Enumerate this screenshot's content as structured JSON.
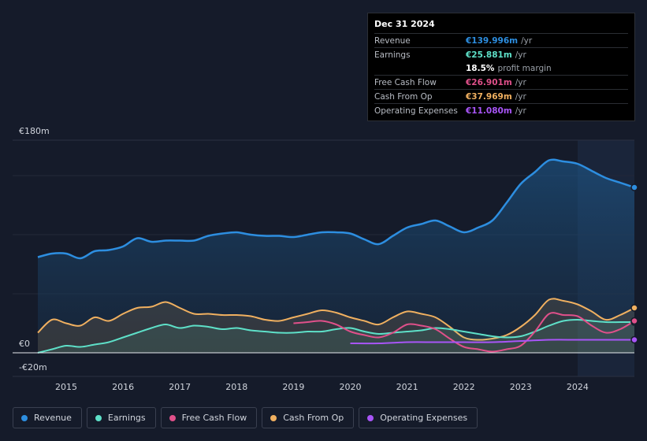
{
  "tooltip": {
    "date": "Dec 31 2024",
    "rows": [
      {
        "label": "Revenue",
        "value": "€139.996m",
        "unit": "/yr",
        "color": "#2d8ee0"
      },
      {
        "label": "Earnings",
        "value": "€25.881m",
        "unit": "/yr",
        "color": "#5ee0c8"
      },
      {
        "label": "",
        "value": "18.5%",
        "unit": "profit margin",
        "color": "#ffffff"
      },
      {
        "label": "Free Cash Flow",
        "value": "€26.901m",
        "unit": "/yr",
        "color": "#e0508a"
      },
      {
        "label": "Cash From Op",
        "value": "€37.969m",
        "unit": "/yr",
        "color": "#f0b060"
      },
      {
        "label": "Operating Expenses",
        "value": "€11.080m",
        "unit": "/yr",
        "color": "#a855f7"
      }
    ]
  },
  "legend": [
    {
      "label": "Revenue",
      "color": "#2d8ee0"
    },
    {
      "label": "Earnings",
      "color": "#5ee0c8"
    },
    {
      "label": "Free Cash Flow",
      "color": "#e0508a"
    },
    {
      "label": "Cash From Op",
      "color": "#f0b060"
    },
    {
      "label": "Operating Expenses",
      "color": "#a855f7"
    }
  ],
  "chart_data": {
    "type": "line",
    "title": "",
    "currency": "EUR",
    "unit": "€m",
    "ylim": [
      -20,
      180
    ],
    "y_tick_labels": [
      "€180m",
      "€0",
      "-€20m"
    ],
    "x_tick_labels": [
      "2015",
      "2016",
      "2017",
      "2018",
      "2019",
      "2020",
      "2021",
      "2022",
      "2023",
      "2024"
    ],
    "highlight_from": 2024.0,
    "series": [
      {
        "name": "Revenue",
        "color": "#2d8ee0",
        "fill": true,
        "x": [
          2014.5,
          2014.75,
          2015,
          2015.25,
          2015.5,
          2015.75,
          2016,
          2016.25,
          2016.5,
          2016.75,
          2017,
          2017.25,
          2017.5,
          2017.75,
          2018,
          2018.25,
          2018.5,
          2018.75,
          2019,
          2019.25,
          2019.5,
          2019.75,
          2020,
          2020.25,
          2020.5,
          2020.75,
          2021,
          2021.25,
          2021.5,
          2021.75,
          2022,
          2022.25,
          2022.5,
          2022.75,
          2023,
          2023.25,
          2023.5,
          2023.75,
          2024,
          2024.25,
          2024.5,
          2024.75,
          2025
        ],
        "y": [
          81,
          84,
          84,
          80,
          86,
          87,
          90,
          97,
          94,
          95,
          95,
          95,
          99,
          101,
          102,
          100,
          99,
          99,
          98,
          100,
          102,
          102,
          101,
          96,
          92,
          99,
          106,
          109,
          112,
          107,
          102,
          106,
          112,
          127,
          143,
          153,
          163,
          162,
          160,
          154,
          148,
          144,
          140
        ]
      },
      {
        "name": "Earnings",
        "color": "#5ee0c8",
        "fill": true,
        "x": [
          2014.5,
          2014.75,
          2015,
          2015.25,
          2015.5,
          2015.75,
          2016,
          2016.25,
          2016.5,
          2016.75,
          2017,
          2017.25,
          2017.5,
          2017.75,
          2018,
          2018.25,
          2018.5,
          2018.75,
          2019,
          2019.25,
          2019.5,
          2019.75,
          2020,
          2020.25,
          2020.5,
          2020.75,
          2021,
          2021.25,
          2021.5,
          2021.75,
          2022,
          2022.25,
          2022.5,
          2022.75,
          2023,
          2023.25,
          2023.5,
          2023.75,
          2024,
          2024.25,
          2024.5,
          2024.75,
          2025
        ],
        "y": [
          0,
          3,
          6,
          5,
          7,
          9,
          13,
          17,
          21,
          24,
          21,
          23,
          22,
          20,
          21,
          19,
          18,
          17,
          17,
          18,
          18,
          20,
          21,
          18,
          16,
          17,
          18,
          19,
          21,
          20,
          18,
          16,
          14,
          13,
          14,
          18,
          23,
          27,
          28,
          27,
          26,
          26,
          26
        ]
      },
      {
        "name": "Cash From Op",
        "color": "#f0b060",
        "fill": true,
        "x": [
          2014.5,
          2014.75,
          2015,
          2015.25,
          2015.5,
          2015.75,
          2016,
          2016.25,
          2016.5,
          2016.75,
          2017,
          2017.25,
          2017.5,
          2017.75,
          2018,
          2018.25,
          2018.5,
          2018.75,
          2019,
          2019.25,
          2019.5,
          2019.75,
          2020,
          2020.25,
          2020.5,
          2020.75,
          2021,
          2021.25,
          2021.5,
          2021.75,
          2022,
          2022.25,
          2022.5,
          2022.75,
          2023,
          2023.25,
          2023.5,
          2023.75,
          2024,
          2024.25,
          2024.5,
          2024.75,
          2025
        ],
        "y": [
          17,
          28,
          25,
          23,
          30,
          27,
          33,
          38,
          39,
          43,
          38,
          33,
          33,
          32,
          32,
          31,
          28,
          27,
          30,
          33,
          36,
          34,
          30,
          27,
          24,
          30,
          35,
          33,
          30,
          22,
          13,
          11,
          12,
          15,
          22,
          32,
          45,
          44,
          41,
          35,
          28,
          32,
          38
        ]
      },
      {
        "name": "Free Cash Flow",
        "color": "#e0508a",
        "fill": false,
        "x": [
          2019,
          2019.25,
          2019.5,
          2019.75,
          2020,
          2020.25,
          2020.5,
          2020.75,
          2021,
          2021.25,
          2021.5,
          2021.75,
          2022,
          2022.25,
          2022.5,
          2022.75,
          2023,
          2023.25,
          2023.5,
          2023.75,
          2024,
          2024.25,
          2024.5,
          2024.75,
          2025
        ],
        "y": [
          25,
          26,
          27,
          24,
          18,
          15,
          13,
          17,
          24,
          23,
          20,
          12,
          5,
          3,
          1,
          3,
          6,
          18,
          33,
          32,
          31,
          23,
          17,
          20,
          27
        ]
      },
      {
        "name": "Operating Expenses",
        "color": "#a855f7",
        "fill": false,
        "x": [
          2020,
          2020.5,
          2021,
          2021.5,
          2022,
          2022.5,
          2023,
          2023.5,
          2024,
          2024.5,
          2025
        ],
        "y": [
          8,
          8,
          9,
          9,
          9,
          9,
          10,
          11,
          11,
          11,
          11
        ]
      }
    ]
  }
}
